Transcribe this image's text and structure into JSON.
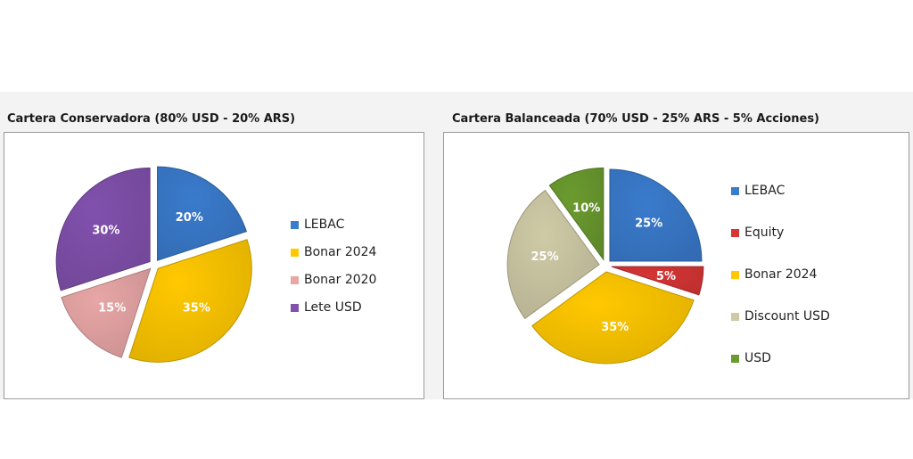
{
  "chart_data": [
    {
      "type": "pie",
      "title": "Cartera Conservadora (80% USD - 20% ARS)",
      "categories": [
        "LEBAC",
        "Bonar 2024",
        "Bonar 2020",
        "Lete USD"
      ],
      "values": [
        20,
        35,
        15,
        30
      ],
      "labels": [
        "20%",
        "35%",
        "15%",
        "30%"
      ],
      "colors": [
        "#3a7bcc",
        "#ffc800",
        "#e8a6a6",
        "#8151ad"
      ],
      "legend_placement": "right"
    },
    {
      "type": "pie",
      "title": "Cartera Balanceada (70% USD - 25% ARS - 5% Acciones)",
      "categories": [
        "LEBAC",
        "Equity",
        "Bonar 2024",
        "Discount USD",
        "USD"
      ],
      "values": [
        25,
        5,
        35,
        25,
        10
      ],
      "labels": [
        "25%",
        "5%",
        "35%",
        "25%",
        "10%"
      ],
      "colors": [
        "#3a7bcc",
        "#d73535",
        "#ffc800",
        "#cfcaa6",
        "#6b9b2f"
      ],
      "legend_placement": "right"
    }
  ]
}
